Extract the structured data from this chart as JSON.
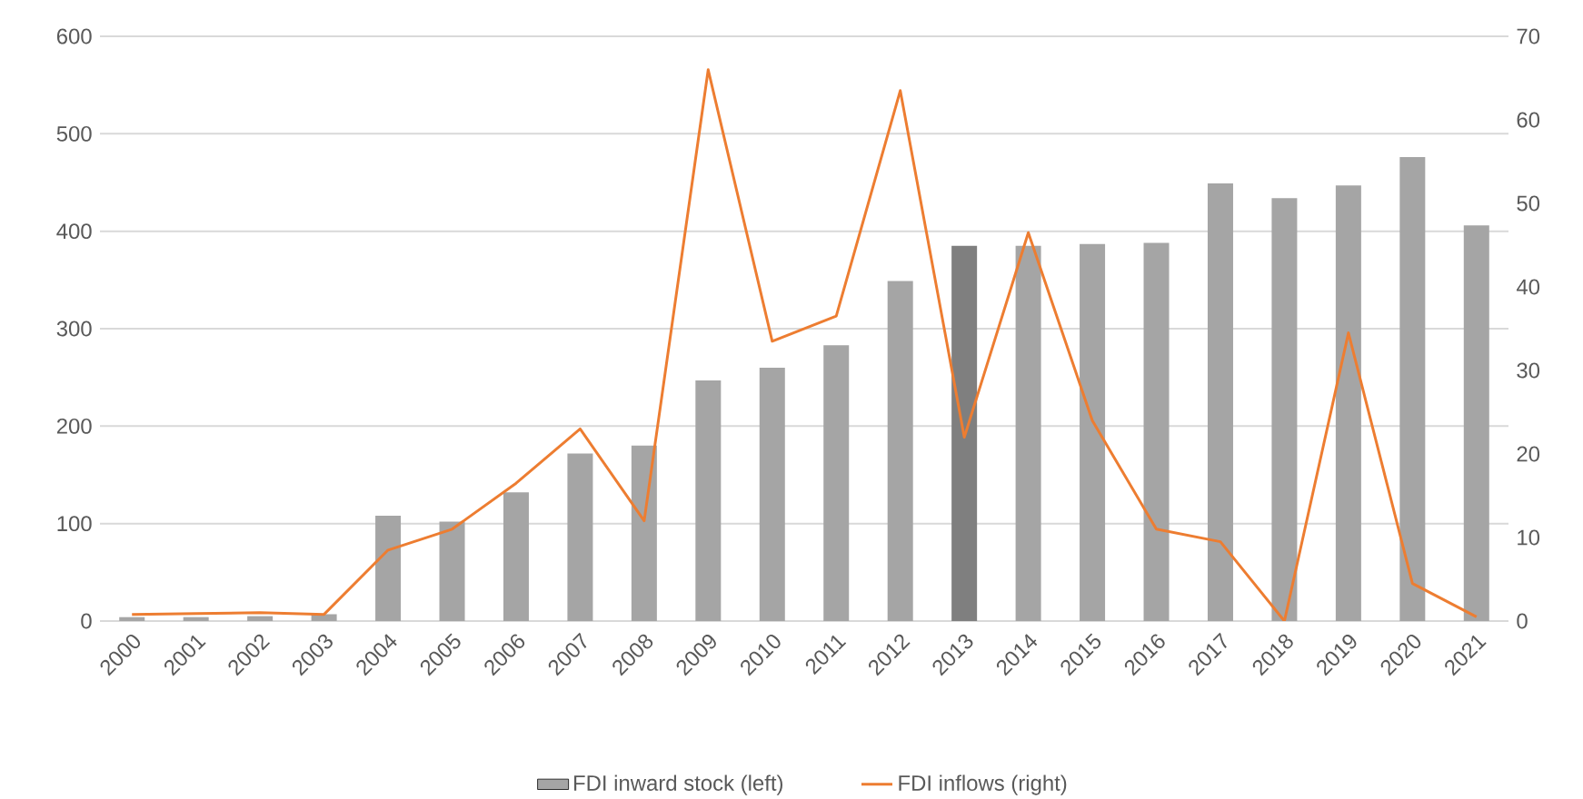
{
  "chart_data": {
    "type": "bar",
    "categories": [
      "2000",
      "2001",
      "2002",
      "2003",
      "2004",
      "2005",
      "2006",
      "2007",
      "2008",
      "2009",
      "2010",
      "2011",
      "2012",
      "2013",
      "2014",
      "2015",
      "2016",
      "2017",
      "2018",
      "2019",
      "2020",
      "2021"
    ],
    "series": [
      {
        "name": "FDI inward stock (left)",
        "color": "#a5a5a5",
        "colors": [
          "#a5a5a5",
          "#a5a5a5",
          "#a5a5a5",
          "#a5a5a5",
          "#a5a5a5",
          "#a5a5a5",
          "#a5a5a5",
          "#a5a5a5",
          "#a5a5a5",
          "#a5a5a5",
          "#a5a5a5",
          "#a5a5a5",
          "#a5a5a5",
          "#7f7f7f",
          "#a5a5a5",
          "#a5a5a5",
          "#a5a5a5",
          "#a5a5a5",
          "#a5a5a5",
          "#a5a5a5",
          "#a5a5a5",
          "#a5a5a5"
        ],
        "values": [
          4,
          4,
          5,
          7,
          108,
          102,
          132,
          172,
          180,
          247,
          260,
          283,
          349,
          385,
          385,
          387,
          388,
          449,
          434,
          447,
          476,
          406
        ]
      },
      {
        "name": "FDI inflows (right)",
        "type": "line",
        "axis": "y2",
        "color": "#ed7d31",
        "values": [
          0.8,
          0.9,
          1.0,
          0.8,
          8.5,
          11,
          16.5,
          23,
          12,
          66,
          33.5,
          36.5,
          63.5,
          22,
          46.5,
          24,
          11,
          9.5,
          0,
          34.5,
          4.5,
          0.5
        ]
      }
    ],
    "ylim": [
      0,
      600
    ],
    "yticks": [
      0,
      100,
      200,
      300,
      400,
      500,
      600
    ],
    "y2lim": [
      0,
      70
    ],
    "y2ticks": [
      0,
      10,
      20,
      30,
      40,
      50,
      60,
      70
    ],
    "grid": "y",
    "legend": "bottom",
    "marker": "none",
    "line_style": "solid"
  }
}
